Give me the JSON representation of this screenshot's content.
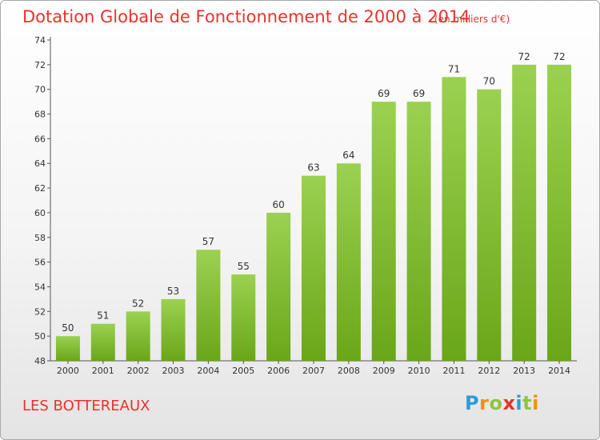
{
  "chart_data": {
    "type": "bar",
    "title": "Dotation Globale de Fonctionnement de 2000 à 2014",
    "unit": "(en milliers d'€)",
    "categories": [
      "2000",
      "2001",
      "2002",
      "2003",
      "2004",
      "2005",
      "2006",
      "2007",
      "2008",
      "2009",
      "2010",
      "2011",
      "2012",
      "2013",
      "2014"
    ],
    "values": [
      50,
      51,
      52,
      53,
      57,
      55,
      60,
      63,
      64,
      69,
      69,
      71,
      70,
      72,
      72
    ],
    "ylim": [
      48,
      74
    ],
    "yticks": [
      48,
      50,
      52,
      54,
      56,
      58,
      60,
      62,
      64,
      66,
      68,
      70,
      72,
      74
    ],
    "grid": false,
    "bar_color": "#8cc63f"
  },
  "footer": {
    "commune": "LES BOTTEREAUX",
    "logo_letters": [
      "P",
      "r",
      "o",
      "x",
      "i",
      "t",
      "i"
    ],
    "logo_colors": [
      "#2e9bd6",
      "#f39200",
      "#8cc63f",
      "#e8322c",
      "#2e9bd6",
      "#8cc63f",
      "#f39200"
    ]
  }
}
